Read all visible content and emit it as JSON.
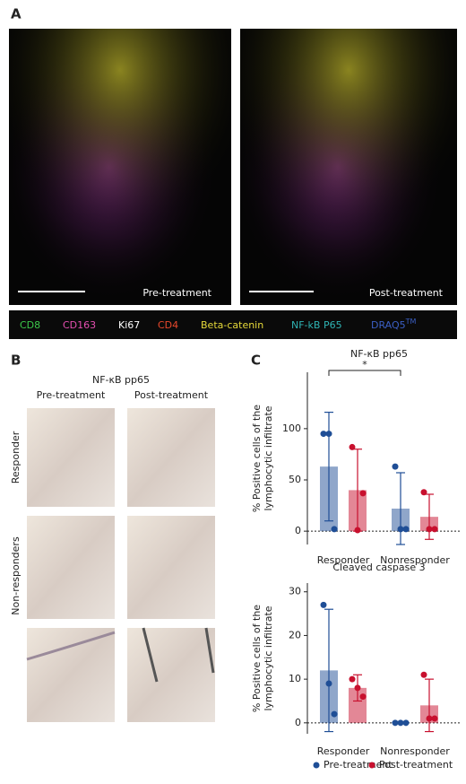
{
  "panel_a": {
    "label": "A",
    "images": [
      {
        "caption": "Pre-treatment"
      },
      {
        "caption": "Post-treatment"
      }
    ],
    "markers": [
      {
        "name": "CD8",
        "color": "#3cc84a"
      },
      {
        "name": "CD163",
        "color": "#e34fb0"
      },
      {
        "name": "Ki67",
        "color": "#ffffff"
      },
      {
        "name": "CD4",
        "color": "#e8482c"
      },
      {
        "name": "Beta-catenin",
        "color": "#e6d93a"
      },
      {
        "name": "NF-kB P65",
        "color": "#2fb3b3"
      },
      {
        "name": "DRAQ5",
        "sup": "TM",
        "color": "#3b5fc4"
      }
    ]
  },
  "panel_b": {
    "label": "B",
    "title": "NF-κB pp65",
    "columns": [
      "Pre-treatment",
      "Post-treatment"
    ],
    "rows": [
      "Responder",
      "Non-responders"
    ]
  },
  "panel_c": {
    "label": "C"
  },
  "chart_data": [
    {
      "type": "bar",
      "title": "NF-κB pp65",
      "ylabel": [
        "% Positive cells of the",
        "lymphocytic infiltrate"
      ],
      "categories": [
        "Responder",
        "Nonresponder"
      ],
      "ylim": [
        -13,
        155
      ],
      "yticks": [
        0,
        50,
        100
      ],
      "annotation": "*",
      "series": [
        {
          "name": "Pre-treatment",
          "color": "#1f4e96",
          "values": [
            63,
            22
          ],
          "errors": [
            53,
            35
          ],
          "points": [
            [
              95,
              95,
              2
            ],
            [
              63,
              2,
              2
            ]
          ]
        },
        {
          "name": "Post-treatment",
          "color": "#c8102e",
          "values": [
            40,
            14
          ],
          "errors": [
            40,
            22
          ],
          "points": [
            [
              82,
              1,
              37
            ],
            [
              38,
              2,
              2
            ]
          ]
        }
      ]
    },
    {
      "type": "bar",
      "title": "Cleaved caspase 3",
      "ylabel": [
        "% Positive cells of the",
        "lymphocytic infiltrate"
      ],
      "categories": [
        "Responder",
        "Nonresponder"
      ],
      "ylim": [
        -2.5,
        32
      ],
      "yticks": [
        0,
        10,
        20,
        30
      ],
      "series": [
        {
          "color": "#1f4e96",
          "values": [
            12,
            0.2
          ],
          "errors": [
            14,
            0
          ],
          "points": [
            [
              27,
              9,
              2
            ],
            [
              0,
              0,
              0
            ]
          ]
        },
        {
          "color": "#c8102e",
          "values": [
            8,
            4
          ],
          "errors": [
            3,
            6
          ],
          "points": [
            [
              10,
              8,
              6
            ],
            [
              11,
              1,
              1
            ]
          ]
        }
      ]
    }
  ]
}
